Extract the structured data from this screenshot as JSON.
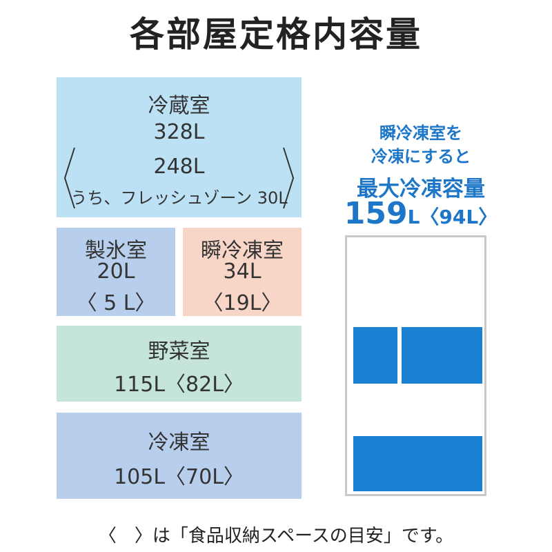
{
  "title": "各部屋定格内容量",
  "fridge": {
    "name": "冷蔵室",
    "capacity": "328L",
    "storage": "248L",
    "fresh_zone": "うち、フレッシュゾーン 30L"
  },
  "ice": {
    "name": "製氷室",
    "capacity": "20L",
    "storage": "〈 5 L〉"
  },
  "flash": {
    "name": "瞬冷凍室",
    "capacity": "34L",
    "storage": "〈19L〉"
  },
  "vegetable": {
    "name": "野菜室",
    "capacity": "115L〈82L〉"
  },
  "freezer": {
    "name": "冷凍室",
    "capacity": "105L〈70L〉"
  },
  "max_freezer": {
    "line1": "瞬冷凍室を",
    "line2": "冷凍にすると",
    "heading": "最大冷凍容量",
    "value_big": "159",
    "value_rest": "L〈94L〉"
  },
  "footer": "〈　〉は「食品収納スペースの目安」です。",
  "colors": {
    "fridge": "#bde1f4",
    "ice": "#b7cfec",
    "flash": "#f7d6c7",
    "vegetable": "#c4e5d7",
    "freezer": "#b7cfec",
    "accent": "#1a80d1"
  }
}
